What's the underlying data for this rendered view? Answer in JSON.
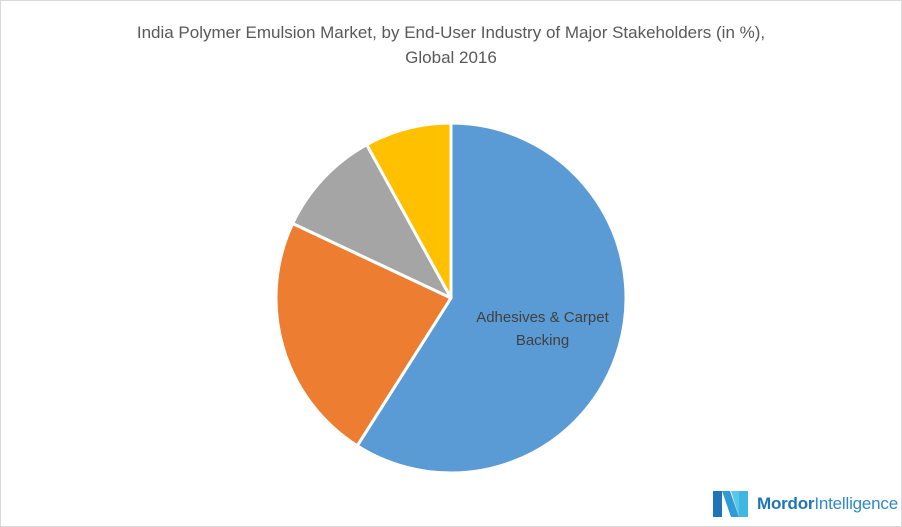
{
  "chart_data": {
    "type": "pie",
    "title": "India Polymer Emulsion Market, by End-User Industry of Major Stakeholders (in %), Global 2016",
    "title_lines": [
      "India Polymer Emulsion Market, by End-User Industry of Major Stakeholders (in %),",
      "Global 2016"
    ],
    "categories": [
      "Adhesives & Carpet Backing",
      "Unlabeled (orange)",
      "Unlabeled (gray)",
      "Unlabeled (yellow)"
    ],
    "values": [
      59,
      23,
      10,
      8
    ],
    "colors": [
      "#5b9bd5",
      "#ed7d31",
      "#a5a5a5",
      "#ffc000"
    ],
    "start_angle_deg": 0,
    "direction": "clockwise",
    "visible_labels": [
      {
        "slice": 0,
        "text_lines": [
          "Adhesives & Carpet",
          "Backing"
        ]
      }
    ],
    "legend": "none"
  },
  "branding": {
    "logo_bold": "Mordor",
    "logo_light": "Intelligence"
  }
}
